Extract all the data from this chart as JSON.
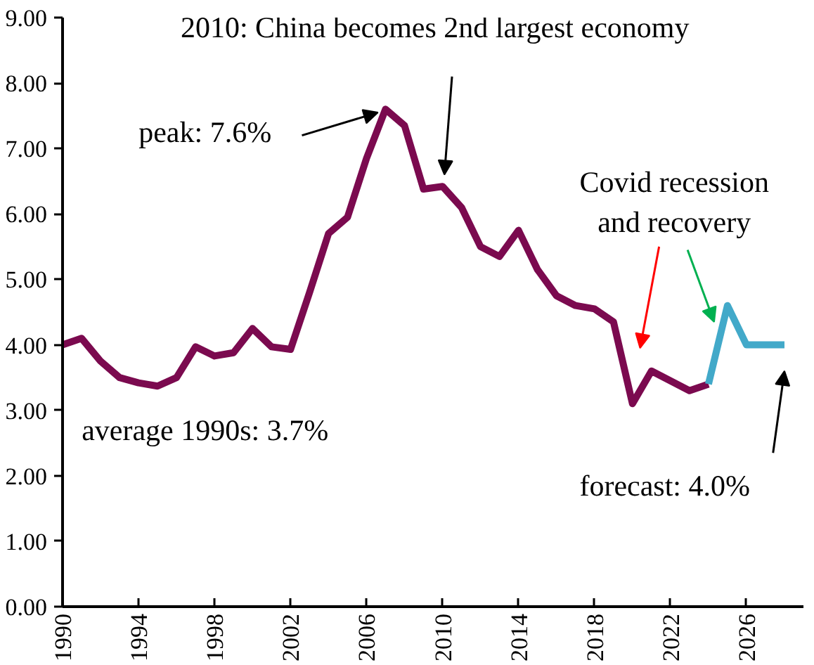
{
  "chart_data": {
    "type": "line",
    "x": [
      1990,
      1991,
      1992,
      1993,
      1994,
      1995,
      1996,
      1997,
      1998,
      1999,
      2000,
      2001,
      2002,
      2003,
      2004,
      2005,
      2006,
      2007,
      2008,
      2009,
      2010,
      2011,
      2012,
      2013,
      2014,
      2015,
      2016,
      2017,
      2018,
      2019,
      2020,
      2021,
      2022,
      2023,
      2024
    ],
    "series": [
      {
        "color": "#7b0a4f",
        "values": [
          4.0,
          4.1,
          3.75,
          3.5,
          3.42,
          3.37,
          3.5,
          3.97,
          3.83,
          3.88,
          4.25,
          3.97,
          3.93,
          4.8,
          5.7,
          5.95,
          6.85,
          7.6,
          7.35,
          6.38,
          6.42,
          6.1,
          5.5,
          5.35,
          5.75,
          5.15,
          4.75,
          4.6,
          4.55,
          4.35,
          3.1,
          3.6,
          3.45,
          3.3,
          3.4
        ]
      },
      {
        "color": "#42a9c9",
        "x": [
          2024,
          2025,
          2026,
          2027,
          2028
        ],
        "values": [
          3.4,
          4.6,
          4.0,
          4.0,
          4.0
        ]
      }
    ],
    "xlim": [
      1990,
      2029
    ],
    "xticks": [
      1990,
      1994,
      1998,
      2002,
      2006,
      2010,
      2014,
      2018,
      2022,
      2026
    ],
    "ylim": [
      0,
      9
    ],
    "yticks": [
      {
        "value": 0,
        "label": "0.00"
      },
      {
        "value": 1,
        "label": "1.00"
      },
      {
        "value": 2,
        "label": "2.00"
      },
      {
        "value": 3,
        "label": "3.00"
      },
      {
        "value": 4,
        "label": "4.00"
      },
      {
        "value": 5,
        "label": "5.00"
      },
      {
        "value": 6,
        "label": "6.00"
      },
      {
        "value": 7,
        "label": "7.00"
      },
      {
        "value": 8,
        "label": "8.00"
      },
      {
        "value": 9,
        "label": "9.00"
      }
    ],
    "annotations": [
      {
        "text": "2010: China becomes 2nd largest economy",
        "x": 2010,
        "y": 6.42
      },
      {
        "text": "peak: 7.6%",
        "x": 2007,
        "y": 7.6
      },
      {
        "text": "Covid recession\nand recovery",
        "x": 2024.3,
        "y": 4.35
      },
      "forecast: 4.0%",
      "average 1990s: 3.7%"
    ],
    "grid": false,
    "marker": "none",
    "line_style": "solid"
  }
}
